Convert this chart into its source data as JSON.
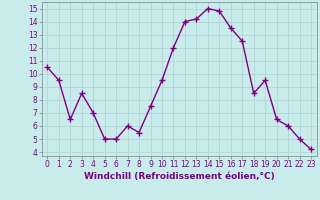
{
  "x": [
    0,
    1,
    2,
    3,
    4,
    5,
    6,
    7,
    8,
    9,
    10,
    11,
    12,
    13,
    14,
    15,
    16,
    17,
    18,
    19,
    20,
    21,
    22,
    23
  ],
  "y": [
    10.5,
    9.5,
    6.5,
    8.5,
    7.0,
    5.0,
    5.0,
    6.0,
    5.5,
    7.5,
    9.5,
    12.0,
    14.0,
    14.2,
    15.0,
    14.8,
    13.5,
    12.5,
    8.5,
    9.5,
    6.5,
    6.0,
    5.0,
    4.2
  ],
  "line_color": "#800080",
  "marker": "+",
  "markersize": 4,
  "linewidth": 1.0,
  "xlabel": "Windchill (Refroidissement éolien,°C)",
  "xlabel_fontsize": 6.5,
  "xlabel_color": "#800080",
  "ylabel_ticks": [
    4,
    5,
    6,
    7,
    8,
    9,
    10,
    11,
    12,
    13,
    14,
    15
  ],
  "xtick_labels": [
    "0",
    "1",
    "2",
    "3",
    "4",
    "5",
    "6",
    "7",
    "8",
    "9",
    "10",
    "11",
    "12",
    "13",
    "14",
    "15",
    "16",
    "17",
    "18",
    "19",
    "20",
    "21",
    "22",
    "23"
  ],
  "ylim": [
    3.7,
    15.5
  ],
  "xlim": [
    -0.5,
    23.5
  ],
  "bg_color": "#c8ecec",
  "grid_color": "#b0d0d0",
  "tick_color": "#800080",
  "tick_fontsize": 5.5,
  "spine_color": "#808080"
}
